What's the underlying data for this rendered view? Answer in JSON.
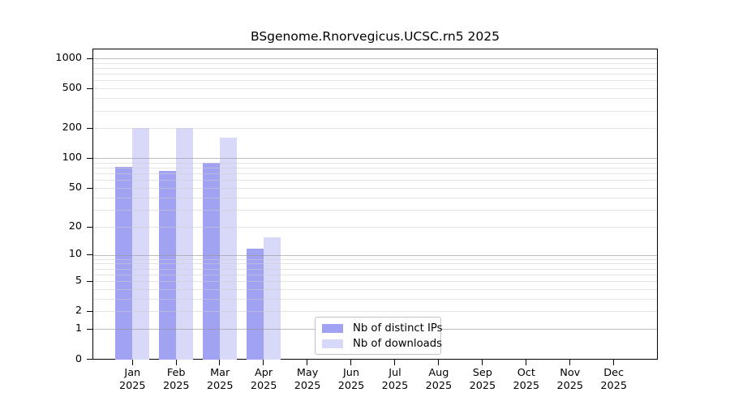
{
  "title": "BSgenome.Rnorvegicus.UCSC.rn5 2025",
  "chart_data": {
    "type": "bar",
    "scale": "log1p",
    "title": "BSgenome.Rnorvegicus.UCSC.rn5 2025",
    "categories": [
      "Jan",
      "Feb",
      "Mar",
      "Apr",
      "May",
      "Jun",
      "Jul",
      "Aug",
      "Sep",
      "Oct",
      "Nov",
      "Dec"
    ],
    "year_label": "2025",
    "series": [
      {
        "name": "Nb of distinct IPs",
        "color": "#a2a2f2",
        "values": [
          84,
          77,
          93,
          12,
          null,
          null,
          null,
          null,
          null,
          null,
          null,
          null
        ]
      },
      {
        "name": "Nb of downloads",
        "color": "#d8d8f8",
        "values": [
          205,
          205,
          165,
          16,
          null,
          null,
          null,
          null,
          null,
          null,
          null,
          null
        ]
      }
    ],
    "y_ticks": [
      0,
      1,
      2,
      5,
      10,
      20,
      50,
      100,
      200,
      500,
      1000
    ],
    "major_gridlines": [
      1,
      10,
      100,
      1000
    ],
    "xlabel": "",
    "ylabel": "",
    "ylim": [
      0,
      1250
    ],
    "grid": "horizontal major+minor",
    "legend_position": "inside-bottom-center",
    "background": "#ffffff"
  },
  "colors": {
    "distinct_ips_bar": "#a2a2f2",
    "downloads_bar": "#d8d8f8",
    "major_grid": "#c1c1c1",
    "minor_grid": "#e9e9e9",
    "axis": "#000000",
    "legend_border": "#c3c3c3"
  }
}
